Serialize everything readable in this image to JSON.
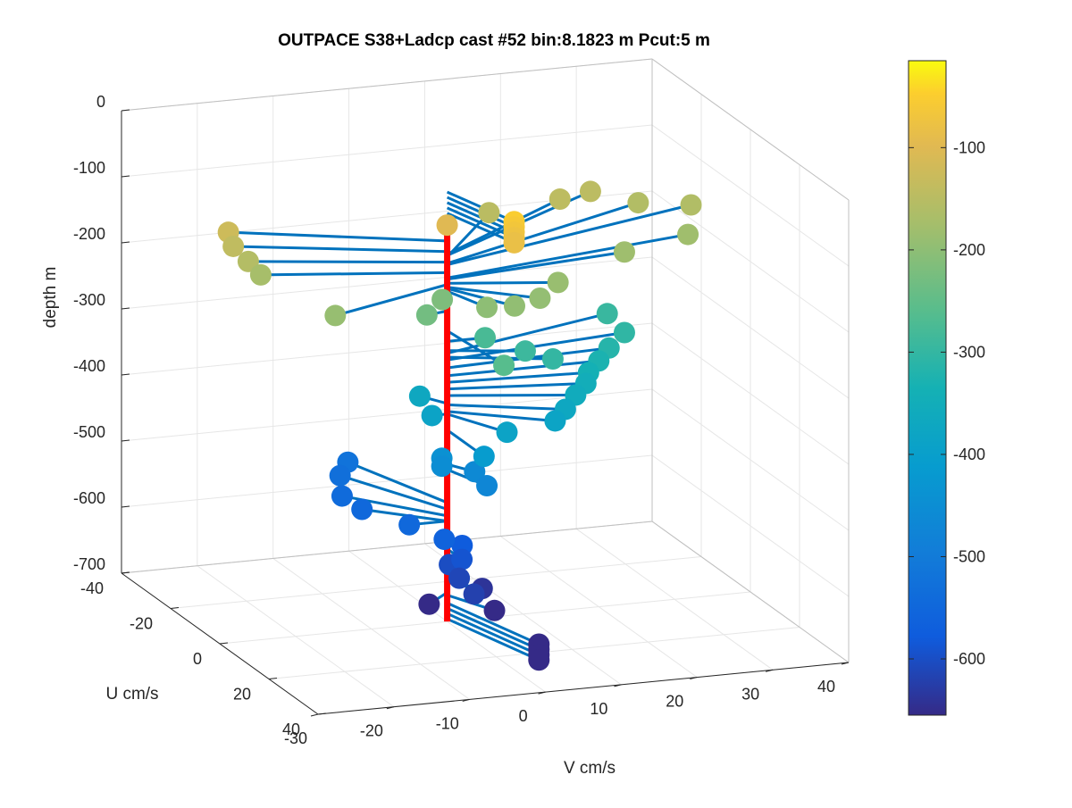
{
  "title": "OUTPACE S38+Ladcp cast #52 bin:8.1823 m  Pcut:5 m",
  "xlabel": "V cm/s",
  "ylabel": "U cm/s",
  "zlabel": "depth m",
  "chart_data": {
    "type": "scatter",
    "subtype": "3d-quiver-profile",
    "title": "OUTPACE S38+Ladcp cast #52 bin:8.1823 m  Pcut:5 m",
    "xlabel": "V cm/s",
    "ylabel": "U cm/s",
    "zlabel": "depth m",
    "xlim": [
      -30,
      40
    ],
    "ylim": [
      -40,
      40
    ],
    "zlim": [
      -700,
      0
    ],
    "xticks": [
      "-30",
      "-20",
      "-10",
      "0",
      "10",
      "20",
      "30",
      "40"
    ],
    "yticks": [
      "-40",
      "-20",
      "0",
      "20",
      "40"
    ],
    "zticks": [
      "0",
      "-100",
      "-200",
      "-300",
      "-400",
      "-500",
      "-600",
      "-700"
    ],
    "colorbar": {
      "colormap": "parula",
      "clim": [
        -655,
        -15
      ],
      "ticks": [
        "-100",
        "-200",
        "-300",
        "-400",
        "-500",
        "-600"
      ]
    },
    "grid": true,
    "mean_profile_color": "#ff0000",
    "vector_color": "#0072bd",
    "points": [
      {
        "v": 3,
        "u": 18,
        "z": -50
      },
      {
        "v": 3,
        "u": 18,
        "z": -58
      },
      {
        "v": 3,
        "u": 18,
        "z": -66
      },
      {
        "v": 3,
        "u": 18,
        "z": -74
      },
      {
        "v": 3,
        "u": 18,
        "z": -82
      },
      {
        "v": 0,
        "u": 0,
        "z": -100
      },
      {
        "v": -24,
        "u": -15,
        "z": -124
      },
      {
        "v": -24,
        "u": -13,
        "z": -140
      },
      {
        "v": -23,
        "u": -10,
        "z": -156
      },
      {
        "v": -22,
        "u": -8,
        "z": -172
      },
      {
        "v": -18,
        "u": 10,
        "z": -190
      },
      {
        "v": 12,
        "u": -20,
        "z": -148
      },
      {
        "v": 22,
        "u": -22,
        "z": -144
      },
      {
        "v": 27,
        "u": -25,
        "z": -146
      },
      {
        "v": 32,
        "u": -21,
        "z": -158
      },
      {
        "v": 38,
        "u": -18,
        "z": -160
      },
      {
        "v": 35,
        "u": -10,
        "z": -180
      },
      {
        "v": 25,
        "u": -5,
        "z": -182
      },
      {
        "v": 13,
        "u": 5,
        "z": -188
      },
      {
        "v": 9,
        "u": 10,
        "z": -194
      },
      {
        "v": 5,
        "u": 12,
        "z": -196
      },
      {
        "v": 2,
        "u": 10,
        "z": -200
      },
      {
        "v": 0,
        "u": -2,
        "z": -218
      },
      {
        "v": -3,
        "u": 1,
        "z": -230
      },
      {
        "v": 1,
        "u": 20,
        "z": -260
      },
      {
        "v": 5,
        "u": 0,
        "z": -276
      },
      {
        "v": 9,
        "u": 4,
        "z": -290
      },
      {
        "v": 12,
        "u": 6,
        "z": -300
      },
      {
        "v": 25,
        "u": -12,
        "z": -294
      },
      {
        "v": 25,
        "u": -5,
        "z": -304
      },
      {
        "v": 22,
        "u": -2,
        "z": -316
      },
      {
        "v": 20,
        "u": 0,
        "z": -328
      },
      {
        "v": 18,
        "u": 2,
        "z": -338
      },
      {
        "v": 17,
        "u": 4,
        "z": -348
      },
      {
        "v": 15,
        "u": 6,
        "z": -358
      },
      {
        "v": 13,
        "u": 8,
        "z": -372
      },
      {
        "v": 11,
        "u": 10,
        "z": -382
      },
      {
        "v": 4,
        "u": 12,
        "z": -386
      },
      {
        "v": -2,
        "u": -5,
        "z": -370
      },
      {
        "v": -2,
        "u": 0,
        "z": -386
      },
      {
        "v": 0,
        "u": 15,
        "z": -410
      },
      {
        "v": -2,
        "u": 4,
        "z": -440
      },
      {
        "v": -2,
        "u": 4,
        "z": -452
      },
      {
        "v": 2,
        "u": 5,
        "z": -462
      },
      {
        "v": 2,
        "u": 10,
        "z": -470
      },
      {
        "v": -5,
        "u": -25,
        "z": -520
      },
      {
        "v": -7,
        "u": -22,
        "z": -530
      },
      {
        "v": -9,
        "u": -15,
        "z": -540
      },
      {
        "v": -8,
        "u": -10,
        "z": -548
      },
      {
        "v": -5,
        "u": 0,
        "z": -548
      },
      {
        "v": -2,
        "u": 5,
        "z": -560
      },
      {
        "v": 1,
        "u": 3,
        "z": -578
      },
      {
        "v": 0,
        "u": 6,
        "z": -590
      },
      {
        "v": -1,
        "u": 4,
        "z": -602
      },
      {
        "v": -1,
        "u": 8,
        "z": -612
      },
      {
        "v": -1,
        "u": 14,
        "z": -620
      },
      {
        "v": 3,
        "u": 5,
        "z": -640
      },
      {
        "v": -4,
        "u": 5,
        "z": -656
      },
      {
        "v": 3,
        "u": 10,
        "z": -660
      },
      {
        "v": 4,
        "u": 25,
        "z": -672
      },
      {
        "v": 4,
        "u": 25,
        "z": -680
      },
      {
        "v": 4,
        "u": 25,
        "z": -688
      },
      {
        "v": 4,
        "u": 25,
        "z": -696
      }
    ]
  }
}
